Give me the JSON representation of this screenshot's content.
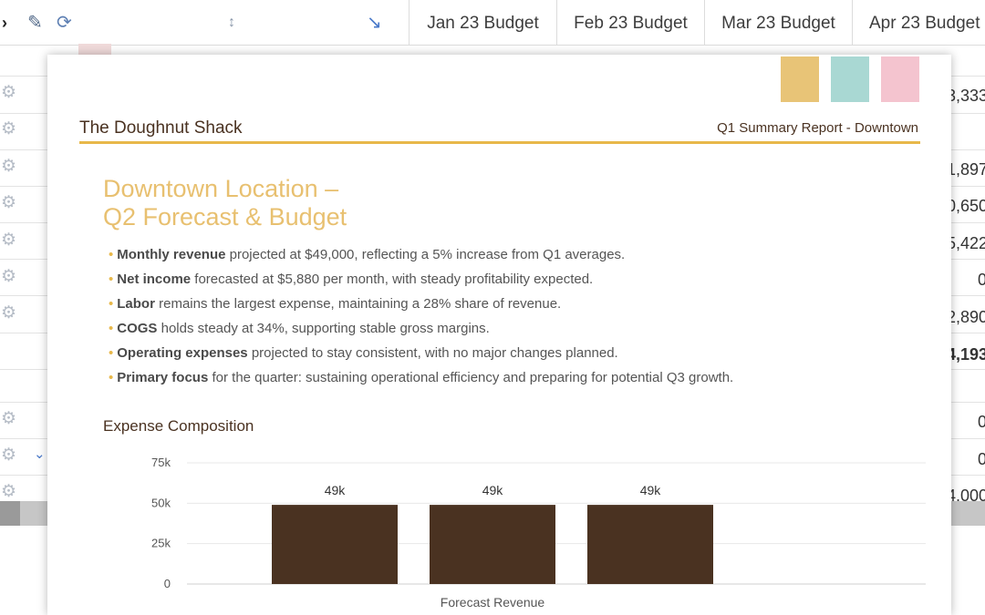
{
  "spreadsheet": {
    "toolbar_icons": [
      "chevron-right-icon",
      "pencil-icon",
      "refresh-icon",
      "sort-icon",
      "collapse-arrow-icon"
    ],
    "columns": [
      "Jan 23 Budget",
      "Feb 23 Budget",
      "Mar 23 Budget",
      "Apr 23 Budget"
    ],
    "right_values": [
      "3,333",
      "1,897",
      "0,650",
      "5,422",
      "0",
      "2,890",
      "4,193",
      "0",
      "0",
      "4,000"
    ]
  },
  "report": {
    "swatch_colors": [
      "#e8c477",
      "#a9d8d3",
      "#f4c4cf"
    ],
    "brand": "The Doughnut Shack",
    "subtitle": "Q1 Summary Report - Downtown",
    "headline_line1": "Downtown Location –",
    "headline_line2": "Q2 Forecast & Budget",
    "bullets": [
      {
        "bold": "Monthly revenue",
        "text": " projected at $49,000, reflecting a 5% increase from Q1 averages."
      },
      {
        "bold": "Net income",
        "text": " forecasted at $5,880 per month, with steady profitability expected."
      },
      {
        "bold": "Labor",
        "text": " remains the largest expense, maintaining a 28% share of revenue."
      },
      {
        "bold": "COGS",
        "text": " holds steady at 34%, supporting stable gross margins."
      },
      {
        "bold": "Operating expenses",
        "text": " projected to stay consistent, with no major changes planned."
      },
      {
        "bold": "Primary focus",
        "text": " for the quarter: sustaining operational efficiency and preparing for potential Q3 growth."
      }
    ],
    "section_title": "Expense Composition",
    "accent_color": "#e8b84a"
  },
  "chart_data": {
    "type": "bar",
    "categories": [
      "",
      "",
      ""
    ],
    "values": [
      49000,
      49000,
      49000
    ],
    "data_labels": [
      "49k",
      "49k",
      "49k"
    ],
    "y_ticks": [
      "0",
      "25k",
      "50k",
      "75k"
    ],
    "ylim": [
      0,
      75000
    ],
    "xlabel": "Forecast Revenue",
    "ylabel": "",
    "bar_color": "#4a3221",
    "grid": true
  }
}
